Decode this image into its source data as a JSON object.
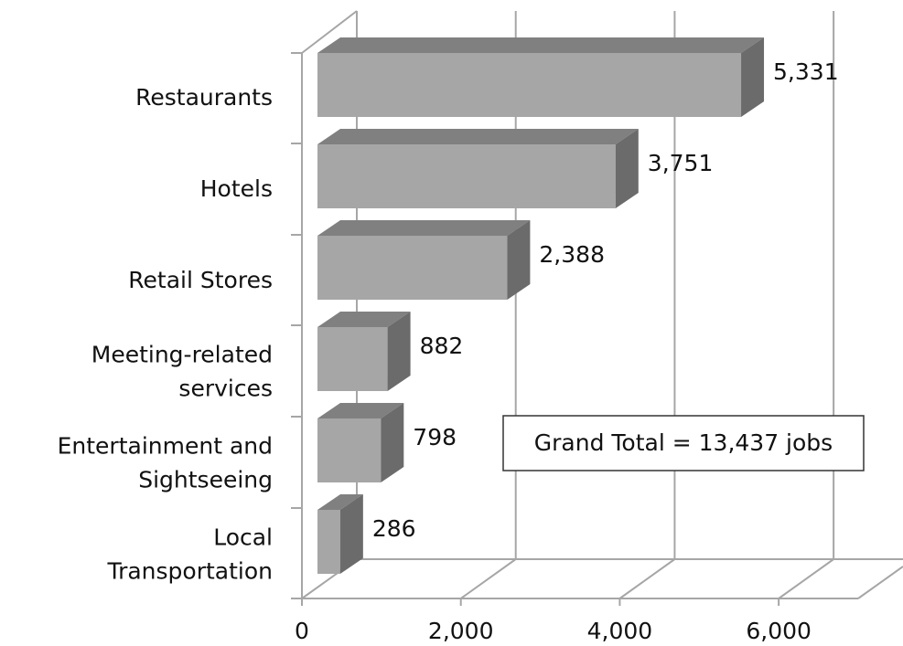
{
  "chart_data": {
    "type": "bar3d_horizontal",
    "categories": [
      [
        "Restaurants"
      ],
      [
        "Hotels"
      ],
      [
        "Retail Stores"
      ],
      [
        "Meeting-related",
        "services"
      ],
      [
        "Entertainment and",
        "Sightseeing"
      ],
      [
        "Local",
        "Transportation"
      ]
    ],
    "values": [
      5331,
      3751,
      2388,
      882,
      798,
      286
    ],
    "value_labels": [
      "5,331",
      "3,751",
      "2,388",
      "882",
      "798",
      "286"
    ],
    "colors": {
      "front": "#a6a6a6",
      "top": "#808080",
      "side": "#6b6b6b"
    },
    "xlim": [
      0,
      7000
    ],
    "xticks": [
      0,
      {
        "value": 2000,
        "label": "2,000"
      },
      {
        "value": 4000,
        "label": "4,000"
      },
      {
        "value": 6000,
        "label": "6,000"
      }
    ],
    "grid": true,
    "annotation": "Grand Total = 13,437 jobs"
  }
}
